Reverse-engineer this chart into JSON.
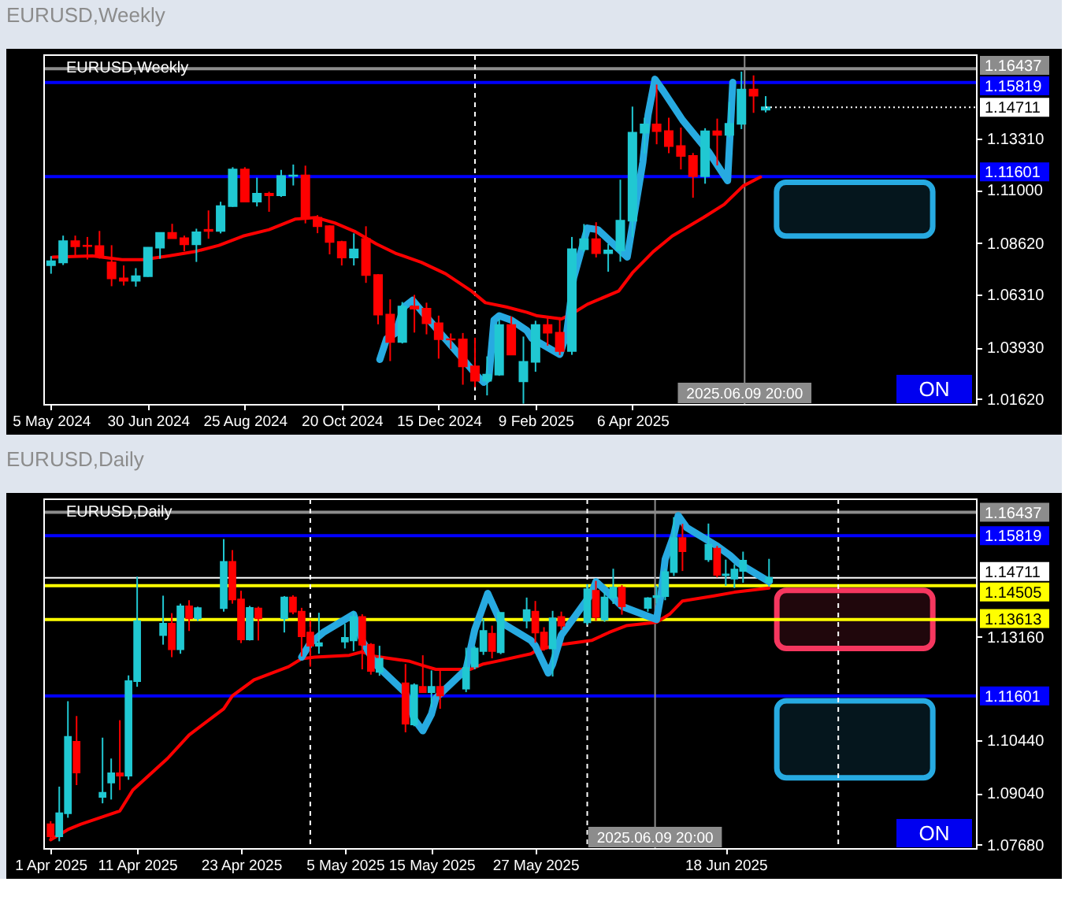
{
  "chart_data": [
    {
      "type": "candlestick",
      "title": "EURUSD,Weekly",
      "subtitle": "EURUSD,Weekly",
      "x": [
        "2024-05-05",
        "2024-05-12",
        "2024-05-19",
        "2024-05-26",
        "2024-06-02",
        "2024-06-09",
        "2024-06-16",
        "2024-06-23",
        "2024-06-30",
        "2024-07-07",
        "2024-07-14",
        "2024-07-21",
        "2024-07-28",
        "2024-08-04",
        "2024-08-11",
        "2024-08-18",
        "2024-08-25",
        "2024-09-01",
        "2024-09-08",
        "2024-09-15",
        "2024-09-22",
        "2024-09-29",
        "2024-10-06",
        "2024-10-13",
        "2024-10-20",
        "2024-10-27",
        "2024-11-03",
        "2024-11-10",
        "2024-11-17",
        "2024-11-24",
        "2024-12-01",
        "2024-12-08",
        "2024-12-15",
        "2024-12-22",
        "2024-12-29",
        "2025-01-05",
        "2025-01-12",
        "2025-01-19",
        "2025-01-26",
        "2025-02-02",
        "2025-02-09",
        "2025-02-16",
        "2025-02-23",
        "2025-03-02",
        "2025-03-09",
        "2025-03-16",
        "2025-03-23",
        "2025-03-30",
        "2025-04-06",
        "2025-04-13",
        "2025-04-20",
        "2025-04-27",
        "2025-05-04",
        "2025-05-11",
        "2025-05-18",
        "2025-05-25",
        "2025-06-01",
        "2025-06-08",
        "2025-06-15",
        "2025-06-22"
      ],
      "ohlc": [
        [
          1.0762,
          1.0803,
          1.0724,
          1.078
        ],
        [
          1.0775,
          1.0895,
          1.0763,
          1.087
        ],
        [
          1.087,
          1.0895,
          1.0805,
          1.0847
        ],
        [
          1.085,
          1.0889,
          1.0788,
          1.0848
        ],
        [
          1.0848,
          1.0916,
          1.0792,
          1.0801
        ],
        [
          1.0775,
          1.0852,
          1.0668,
          1.0703
        ],
        [
          1.0703,
          1.0761,
          1.0671,
          1.0693
        ],
        [
          1.0693,
          1.0749,
          1.0666,
          1.0713
        ],
        [
          1.0713,
          1.0843,
          1.071,
          1.0841
        ],
        [
          1.0841,
          1.091,
          1.0791,
          1.0907
        ],
        [
          1.0907,
          1.0948,
          1.0882,
          1.0883
        ],
        [
          1.0883,
          1.0895,
          1.0825,
          1.0856
        ],
        [
          1.0856,
          1.0926,
          1.0777,
          1.091
        ],
        [
          1.0921,
          1.1008,
          1.0881,
          1.0916
        ],
        [
          1.0916,
          1.1047,
          1.0905,
          1.1027
        ],
        [
          1.1027,
          1.1202,
          1.1024,
          1.1192
        ],
        [
          1.1192,
          1.1202,
          1.1046,
          1.1048
        ],
        [
          1.1048,
          1.1155,
          1.1026,
          1.1083
        ],
        [
          1.1083,
          1.1092,
          1.1002,
          1.1076
        ],
        [
          1.1076,
          1.119,
          1.1069,
          1.1163
        ],
        [
          1.1163,
          1.1214,
          1.112,
          1.1165
        ],
        [
          1.1165,
          1.1209,
          1.095,
          1.0975
        ],
        [
          1.0975,
          1.0987,
          1.0906,
          1.0937
        ],
        [
          1.0937,
          1.0941,
          1.0811,
          1.0867
        ],
        [
          1.0867,
          1.0872,
          1.0761,
          1.0797
        ],
        [
          1.0797,
          1.0905,
          1.0761,
          1.0833
        ],
        [
          1.088,
          1.0937,
          1.0683,
          1.0718
        ],
        [
          1.0718,
          1.0722,
          1.0497,
          1.0541
        ],
        [
          1.0541,
          1.0609,
          1.0332,
          1.0418
        ],
        [
          1.0418,
          1.0597,
          1.0411,
          1.0577
        ],
        [
          1.0577,
          1.0629,
          1.046,
          1.0567
        ],
        [
          1.0567,
          1.0594,
          1.0452,
          1.0502
        ],
        [
          1.0502,
          1.0536,
          1.0343,
          1.043
        ],
        [
          1.043,
          1.0456,
          1.0386,
          1.0429
        ],
        [
          1.0429,
          1.0458,
          1.0226,
          1.0308
        ],
        [
          1.0308,
          1.0437,
          1.0215,
          1.0244
        ],
        [
          1.0244,
          1.0353,
          1.0178,
          1.0271
        ],
        [
          1.0271,
          1.0521,
          1.0266,
          1.0494
        ],
        [
          1.0494,
          1.0532,
          1.0359,
          1.0361
        ],
        [
          1.0241,
          1.0442,
          1.0141,
          1.0329
        ],
        [
          1.0329,
          1.0513,
          1.0284,
          1.0494
        ],
        [
          1.0494,
          1.0528,
          1.0401,
          1.0459
        ],
        [
          1.0459,
          1.0529,
          1.0359,
          1.0377
        ],
        [
          1.0377,
          1.0889,
          1.036,
          1.0834
        ],
        [
          1.0834,
          1.0947,
          1.0823,
          1.0879
        ],
        [
          1.0879,
          1.0955,
          1.0797,
          1.0816
        ],
        [
          1.0816,
          1.0858,
          1.0733,
          1.0829
        ],
        [
          1.0829,
          1.1146,
          1.0778,
          1.0962
        ],
        [
          1.0962,
          1.1474,
          1.0889,
          1.1357
        ],
        [
          1.1357,
          1.1424,
          1.1264,
          1.1394
        ],
        [
          1.1394,
          1.1573,
          1.1305,
          1.1364
        ],
        [
          1.1364,
          1.1424,
          1.1265,
          1.1297
        ],
        [
          1.1297,
          1.138,
          1.1192,
          1.1253
        ],
        [
          1.1253,
          1.1266,
          1.1065,
          1.1162
        ],
        [
          1.1162,
          1.1377,
          1.1128,
          1.1363
        ],
        [
          1.1363,
          1.142,
          1.121,
          1.1347
        ],
        [
          1.1347,
          1.1495,
          1.1336,
          1.1397
        ],
        [
          1.1397,
          1.1631,
          1.1373,
          1.155
        ],
        [
          1.155,
          1.1614,
          1.1446,
          1.1523
        ],
        [
          1.146,
          1.1521,
          1.1448,
          1.1471
        ]
      ],
      "colors": [
        "#20c8d2",
        "#20c8d2",
        "#ff0000",
        "#ff0000",
        "#ff0000",
        "#ff0000",
        "#ff0000",
        "#20c8d2",
        "#20c8d2",
        "#20c8d2",
        "#ff0000",
        "#ff0000",
        "#20c8d2",
        "#ff0000",
        "#20c8d2",
        "#20c8d2",
        "#ff0000",
        "#20c8d2",
        "#ff0000",
        "#20c8d2",
        "#20c8d2",
        "#ff0000",
        "#ff0000",
        "#ff0000",
        "#ff0000",
        "#20c8d2",
        "#ff0000",
        "#ff0000",
        "#ff0000",
        "#20c8d2",
        "#ff0000",
        "#ff0000",
        "#ff0000",
        "#ff0000",
        "#ff0000",
        "#ff0000",
        "#20c8d2",
        "#20c8d2",
        "#ff0000",
        "#20c8d2",
        "#20c8d2",
        "#ff0000",
        "#ff0000",
        "#20c8d2",
        "#20c8d2",
        "#ff0000",
        "#20c8d2",
        "#20c8d2",
        "#20c8d2",
        "#20c8d2",
        "#ff0000",
        "#ff0000",
        "#ff0000",
        "#ff0000",
        "#20c8d2",
        "#ff0000",
        "#20c8d2",
        "#20c8d2",
        "#ff0000",
        "#20c8d2"
      ],
      "xlim": [
        "2024-05-01",
        "2025-10-22"
      ],
      "xticks": [
        {
          "value": "2024-05-05",
          "label": "5 May 2024"
        },
        {
          "value": "2024-06-30",
          "label": "30 Jun 2024"
        },
        {
          "value": "2024-08-25",
          "label": "25 Aug 2024"
        },
        {
          "value": "2024-10-20",
          "label": "20 Oct 2024"
        },
        {
          "value": "2024-12-15",
          "label": "15 Dec 2024"
        },
        {
          "value": "2025-02-09",
          "label": "9 Feb 2025"
        },
        {
          "value": "2025-04-06",
          "label": "6 Apr 2025"
        }
      ],
      "ylim": [
        1.0136,
        1.1705
      ],
      "yticks": [
        {
          "value": 1.0162,
          "label": "1.01620"
        },
        {
          "value": 1.0393,
          "label": "1.03930"
        },
        {
          "value": 1.0631,
          "label": "1.06310"
        },
        {
          "value": 1.0862,
          "label": "1.08620"
        },
        {
          "value": 1.11,
          "label": "1.11000"
        },
        {
          "value": 1.1331,
          "label": "1.13310"
        }
      ],
      "series": [
        {
          "type": "line",
          "color": "#ff0000",
          "x": [
            "2024-05-06",
            "2024-05-29",
            "2024-06-15",
            "2024-06-27",
            "2024-07-12",
            "2024-07-27",
            "2024-08-10",
            "2024-08-24",
            "2024-09-08",
            "2024-09-23",
            "2024-10-05",
            "2024-10-16",
            "2024-10-28",
            "2024-11-09",
            "2024-11-20",
            "2024-12-05",
            "2024-12-19",
            "2025-01-03",
            "2025-01-11",
            "2025-01-23",
            "2025-02-04",
            "2025-02-10",
            "2025-02-24",
            "2025-03-02",
            "2025-03-11",
            "2025-03-29",
            "2025-04-06",
            "2025-04-18",
            "2025-04-29",
            "2025-05-17",
            "2025-05-29",
            "2025-06-09",
            "2025-06-19"
          ],
          "values": [
            1.0799,
            1.0804,
            1.0787,
            1.0787,
            1.0804,
            1.0823,
            1.0851,
            1.0893,
            1.0922,
            1.0969,
            1.0976,
            1.0952,
            1.0912,
            1.0858,
            1.0816,
            1.0775,
            1.0724,
            1.0646,
            1.0594,
            1.0575,
            1.0551,
            1.0535,
            1.0521,
            1.0544,
            1.0587,
            1.0646,
            1.0728,
            1.0823,
            1.0893,
            1.0976,
            1.1035,
            1.1118,
            1.1158
          ]
        },
        {
          "type": "line",
          "color": "#27aae1",
          "x": [
            "2024-11-11",
            "2024-11-15",
            "2024-11-20",
            "2024-11-25",
            "2024-11-30",
            "2024-12-07",
            "2024-12-16",
            "2024-12-28",
            "2025-01-06",
            "2025-01-10",
            "2025-01-13",
            "2025-01-16",
            "2025-01-19",
            "2025-01-26",
            "2025-02-04",
            "2025-02-07",
            "2025-02-23",
            "2025-02-27",
            "2025-03-03",
            "2025-03-11",
            "2025-03-17",
            "2025-04-03",
            "2025-04-05",
            "2025-04-12",
            "2025-04-15",
            "2025-04-19",
            "2025-04-24",
            "2025-05-05",
            "2025-05-20",
            "2025-05-31",
            "2025-06-03"
          ],
          "values": [
            1.0339,
            1.0433,
            1.0457,
            1.0575,
            1.0605,
            1.0539,
            1.0457,
            1.0351,
            1.0268,
            1.0237,
            1.0256,
            1.0516,
            1.0535,
            1.0516,
            1.0469,
            1.0433,
            1.0362,
            1.0457,
            1.0705,
            1.0929,
            1.0922,
            1.0799,
            1.0893,
            1.1224,
            1.1436,
            1.1597,
            1.1542,
            1.1413,
            1.1271,
            1.1141,
            1.1583
          ]
        }
      ],
      "ref_lines": [
        {
          "axis": "y",
          "value": 1.16437,
          "label": "1.16437",
          "color": "#8c8c8c"
        },
        {
          "axis": "y",
          "value": 1.15819,
          "label": "1.15819",
          "color": "#0000ff"
        },
        {
          "axis": "y",
          "value": 1.11601,
          "label": "1.11601",
          "color": "#0000ff"
        },
        {
          "axis": "x",
          "value": "2025-01-05",
          "color": "#ffffff",
          "line_style": "dashed"
        },
        {
          "axis": "x",
          "value": "2025-06-09T20:00",
          "label": "2025.06.09 20:00",
          "color": "#8c8c8c"
        }
      ],
      "bands": [
        {
          "axis": "y",
          "from": 1.0893,
          "to": 1.1134,
          "color": "#27aae1"
        }
      ],
      "annotations": [
        {
          "text": "1.14711",
          "x": "2025-06-22",
          "y": 1.14711
        },
        "ON"
      ]
    },
    {
      "type": "candlestick",
      "title": "EURUSD,Daily",
      "subtitle": "EURUSD,Daily",
      "x": [
        "2025-04-01",
        "2025-04-02",
        "2025-04-03",
        "2025-04-04",
        "2025-04-07",
        "2025-04-08",
        "2025-04-09",
        "2025-04-10",
        "2025-04-11",
        "2025-04-14",
        "2025-04-15",
        "2025-04-16",
        "2025-04-17",
        "2025-04-18",
        "2025-04-21",
        "2025-04-22",
        "2025-04-23",
        "2025-04-24",
        "2025-04-25",
        "2025-04-28",
        "2025-04-29",
        "2025-04-30",
        "2025-05-01",
        "2025-05-02",
        "2025-05-05",
        "2025-05-06",
        "2025-05-07",
        "2025-05-08",
        "2025-05-09",
        "2025-05-12",
        "2025-05-13",
        "2025-05-14",
        "2025-05-15",
        "2025-05-16",
        "2025-05-19",
        "2025-05-20",
        "2025-05-21",
        "2025-05-22",
        "2025-05-23",
        "2025-05-26",
        "2025-05-27",
        "2025-05-28",
        "2025-05-29",
        "2025-05-30",
        "2025-06-02",
        "2025-06-03",
        "2025-06-04",
        "2025-06-05",
        "2025-06-06",
        "2025-06-09",
        "2025-06-10",
        "2025-06-11",
        "2025-06-12",
        "2025-06-13",
        "2025-06-16",
        "2025-06-17",
        "2025-06-18",
        "2025-06-19",
        "2025-06-20",
        "2025-06-23"
      ],
      "ohlc": [
        [
          1.0822,
          1.083,
          1.0778,
          1.079
        ],
        [
          1.079,
          1.0921,
          1.0777,
          1.0851
        ],
        [
          1.0851,
          1.1146,
          1.0839,
          1.1052
        ],
        [
          1.1039,
          1.1107,
          1.0925,
          1.0958
        ],
        [
          1.0894,
          1.105,
          1.0877,
          1.0905
        ],
        [
          1.0932,
          1.0995,
          1.0887,
          1.0956
        ],
        [
          1.0956,
          1.1096,
          1.0912,
          1.095
        ],
        [
          1.095,
          1.1214,
          1.0939,
          1.1199
        ],
        [
          1.1199,
          1.1474,
          1.1184,
          1.1357
        ],
        [
          1.132,
          1.1424,
          1.1295,
          1.135
        ],
        [
          1.135,
          1.1378,
          1.1262,
          1.1283
        ],
        [
          1.1283,
          1.1403,
          1.1271,
          1.1396
        ],
        [
          1.1396,
          1.1412,
          1.1331,
          1.1364
        ],
        [
          1.1364,
          1.1395,
          1.1357,
          1.1391
        ],
        [
          1.1391,
          1.1573,
          1.1382,
          1.1513
        ],
        [
          1.1513,
          1.1544,
          1.1403,
          1.1414
        ],
        [
          1.1414,
          1.1437,
          1.1299,
          1.1309
        ],
        [
          1.1309,
          1.1397,
          1.1306,
          1.1392
        ],
        [
          1.139,
          1.1395,
          1.1306,
          1.1364
        ],
        [
          1.1364,
          1.1423,
          1.1327,
          1.1419
        ],
        [
          1.1419,
          1.1425,
          1.1375,
          1.1382
        ],
        [
          1.1382,
          1.1392,
          1.1264,
          1.1317
        ],
        [
          1.1327,
          1.1358,
          1.1237,
          1.1292
        ],
        [
          1.1292,
          1.1379,
          1.1271,
          1.1299
        ],
        [
          1.1303,
          1.135,
          1.1285,
          1.1313
        ],
        [
          1.1306,
          1.1382,
          1.1278,
          1.1368
        ],
        [
          1.1368,
          1.1375,
          1.123,
          1.1295
        ],
        [
          1.1295,
          1.1299,
          1.1216,
          1.1226
        ],
        [
          1.1223,
          1.1292,
          1.1213,
          1.1258
        ],
        [
          1.1193,
          1.1244,
          1.1064,
          1.1087
        ],
        [
          1.1085,
          1.1193,
          1.108,
          1.1188
        ],
        [
          1.1184,
          1.1267,
          1.1168,
          1.117
        ],
        [
          1.117,
          1.1227,
          1.113,
          1.1184
        ],
        [
          1.1184,
          1.1228,
          1.1126,
          1.1161
        ],
        [
          1.1179,
          1.1287,
          1.117,
          1.1234
        ],
        [
          1.1237,
          1.1291,
          1.123,
          1.1285
        ],
        [
          1.1278,
          1.1363,
          1.1268,
          1.1331
        ],
        [
          1.1324,
          1.1345,
          1.1259,
          1.1278
        ],
        [
          1.1275,
          1.1379,
          1.127,
          1.1379
        ],
        [
          1.1358,
          1.1419,
          1.1338,
          1.1386
        ],
        [
          1.1382,
          1.141,
          1.13,
          1.1327
        ],
        [
          1.1327,
          1.1341,
          1.1279,
          1.1285
        ],
        [
          1.1285,
          1.1384,
          1.1211,
          1.1364
        ],
        [
          1.1368,
          1.1382,
          1.1334,
          1.1345
        ],
        [
          1.1354,
          1.1454,
          1.1347,
          1.1441
        ],
        [
          1.1437,
          1.1463,
          1.1358,
          1.1368
        ],
        [
          1.1361,
          1.1434,
          1.1355,
          1.1419
        ],
        [
          1.1419,
          1.1495,
          1.1402,
          1.1445
        ],
        [
          1.1445,
          1.1452,
          1.1374,
          1.1396
        ],
        [
          1.1392,
          1.142,
          1.1382,
          1.1417
        ],
        [
          1.142,
          1.145,
          1.1404,
          1.1423
        ],
        [
          1.1423,
          1.1495,
          1.1412,
          1.1486
        ],
        [
          1.1486,
          1.1631,
          1.1476,
          1.1576
        ],
        [
          1.1576,
          1.1613,
          1.1489,
          1.1541
        ],
        [
          1.152,
          1.1614,
          1.1513,
          1.1558
        ],
        [
          1.1548,
          1.1555,
          1.1472,
          1.1479
        ],
        [
          1.1478,
          1.1519,
          1.145,
          1.148
        ],
        [
          1.1469,
          1.1507,
          1.1444,
          1.1493
        ],
        [
          1.1489,
          1.154,
          1.1458,
          1.1516
        ],
        [
          1.146,
          1.1521,
          1.1448,
          1.1471
        ]
      ],
      "colors": [
        "#ff0000",
        "#20c8d2",
        "#20c8d2",
        "#ff0000",
        "#20c8d2",
        "#20c8d2",
        "#ff0000",
        "#20c8d2",
        "#20c8d2",
        "#20c8d2",
        "#ff0000",
        "#20c8d2",
        "#ff0000",
        "#20c8d2",
        "#20c8d2",
        "#ff0000",
        "#ff0000",
        "#20c8d2",
        "#ff0000",
        "#20c8d2",
        "#ff0000",
        "#ff0000",
        "#ff0000",
        "#20c8d2",
        "#20c8d2",
        "#20c8d2",
        "#ff0000",
        "#ff0000",
        "#20c8d2",
        "#ff0000",
        "#20c8d2",
        "#ff0000",
        "#20c8d2",
        "#ff0000",
        "#20c8d2",
        "#20c8d2",
        "#20c8d2",
        "#ff0000",
        "#20c8d2",
        "#20c8d2",
        "#ff0000",
        "#ff0000",
        "#20c8d2",
        "#ff0000",
        "#20c8d2",
        "#ff0000",
        "#20c8d2",
        "#20c8d2",
        "#ff0000",
        "#20c8d2",
        "#20c8d2",
        "#20c8d2",
        "#20c8d2",
        "#ff0000",
        "#20c8d2",
        "#ff0000",
        "#20c8d2",
        "#20c8d2",
        "#20c8d2",
        "#20c8d2"
      ],
      "xlim": [
        "2025-03-31T06:00",
        "2025-07-17"
      ],
      "xticks": [
        {
          "value": "2025-04-01",
          "label": "1 Apr 2025"
        },
        {
          "value": "2025-04-11",
          "label": "11 Apr 2025"
        },
        {
          "value": "2025-04-23",
          "label": "23 Apr 2025"
        },
        {
          "value": "2025-05-05",
          "label": "5 May 2025"
        },
        {
          "value": "2025-05-15",
          "label": "15 May 2025"
        },
        {
          "value": "2025-05-27",
          "label": "27 May 2025"
        },
        {
          "value": "2025-06-18",
          "label": "18 Jun 2025"
        }
      ],
      "ylim": [
        1.0757,
        1.1678
      ],
      "yticks": [
        {
          "value": 1.0768,
          "label": "1.07680"
        },
        {
          "value": 1.0904,
          "label": "1.09040"
        },
        {
          "value": 1.1044,
          "label": "1.10440"
        },
        {
          "value": 1.1316,
          "label": "1.13160"
        }
      ],
      "series": [
        {
          "type": "line",
          "color": "#ff0000",
          "x": [
            "2025-04-01",
            "2025-04-03",
            "2025-04-04T12:00",
            "2025-04-09",
            "2025-04-10T12:00",
            "2025-04-14T12:00",
            "2025-04-17",
            "2025-04-21",
            "2025-04-22",
            "2025-04-24T12:00",
            "2025-04-28T12:00",
            "2025-04-30",
            "2025-05-01T12:00",
            "2025-05-05T12:00",
            "2025-05-07",
            "2025-05-08T12:00",
            "2025-05-12T12:00",
            "2025-05-14",
            "2025-05-15T12:00",
            "2025-05-19T12:00",
            "2025-05-21",
            "2025-05-22T12:00",
            "2025-05-26T12:00",
            "2025-05-27",
            "2025-05-29",
            "2025-06-02T12:00",
            "2025-06-04T12:00",
            "2025-06-06T12:00",
            "2025-06-10",
            "2025-06-11T12:00",
            "2025-06-13",
            "2025-06-16T12:00",
            "2025-06-19",
            "2025-06-23"
          ],
          "values": [
            1.0781,
            1.0808,
            1.0822,
            1.0857,
            1.0912,
            1.0995,
            1.1057,
            1.1126,
            1.116,
            1.1202,
            1.1237,
            1.1258,
            1.1262,
            1.1267,
            1.1276,
            1.1264,
            1.1251,
            1.124,
            1.123,
            1.123,
            1.1244,
            1.1251,
            1.1271,
            1.1278,
            1.1292,
            1.1306,
            1.1327,
            1.1345,
            1.1354,
            1.1375,
            1.141,
            1.1423,
            1.1433,
            1.1444
          ]
        },
        {
          "type": "line",
          "color": "#27aae1",
          "x": [
            "2025-04-30",
            "2025-05-01",
            "2025-05-02T12:00",
            "2025-05-06",
            "2025-05-07",
            "2025-05-08T12:00",
            "2025-05-12",
            "2025-05-13",
            "2025-05-14",
            "2025-05-15",
            "2025-05-15T12:00",
            "2025-05-19",
            "2025-05-20",
            "2025-05-21T12:00",
            "2025-05-23",
            "2025-05-26T12:00",
            "2025-05-27",
            "2025-05-28T12:00",
            "2025-05-29",
            "2025-05-30",
            "2025-06-02T12:00",
            "2025-06-03",
            "2025-06-04T12:00",
            "2025-06-06",
            "2025-06-10",
            "2025-06-10T12:00",
            "2025-06-11",
            "2025-06-12",
            "2025-06-12T12:00",
            "2025-06-13T12:00",
            "2025-06-17",
            "2025-06-18T12:00",
            "2025-06-19T12:00",
            "2025-06-23"
          ],
          "values": [
            1.1262,
            1.1299,
            1.1327,
            1.1375,
            1.1306,
            1.1244,
            1.1168,
            1.1099,
            1.1068,
            1.1112,
            1.1154,
            1.123,
            1.1334,
            1.143,
            1.1354,
            1.1306,
            1.1292,
            1.122,
            1.1244,
            1.132,
            1.143,
            1.1461,
            1.143,
            1.1396,
            1.1361,
            1.1423,
            1.152,
            1.1583,
            1.1635,
            1.1603,
            1.1555,
            1.153,
            1.1509,
            1.1461
          ]
        }
      ],
      "ref_lines": [
        {
          "axis": "y",
          "value": 1.16437,
          "label": "1.16437",
          "color": "#8c8c8c"
        },
        {
          "axis": "y",
          "value": 1.15819,
          "label": "1.15819",
          "color": "#0000ff"
        },
        {
          "axis": "y",
          "value": 1.14711,
          "label": "1.14711",
          "color": "#ffffff"
        },
        {
          "axis": "y",
          "value": 1.14505,
          "label": "1.14505",
          "color": "#ffff00"
        },
        {
          "axis": "y",
          "value": 1.13613,
          "label": "1.13613",
          "color": "#ffff00"
        },
        {
          "axis": "y",
          "value": 1.11601,
          "label": "1.11601",
          "color": "#0000ff"
        },
        {
          "axis": "x",
          "value": "2025-05-01",
          "color": "#ffffff",
          "line_style": "dashed"
        },
        {
          "axis": "x",
          "value": "2025-06-02",
          "color": "#ffffff",
          "line_style": "dashed"
        },
        {
          "axis": "x",
          "value": "2025-07-01",
          "color": "#ffffff",
          "line_style": "dashed"
        },
        {
          "axis": "x",
          "value": "2025-06-09T20:00",
          "label": "2025.06.09 20:00",
          "color": "#8c8c8c"
        }
      ],
      "bands": [
        {
          "axis": "y",
          "from": 1.1285,
          "to": 1.1438,
          "color": "#f5375f"
        },
        {
          "axis": "y",
          "from": 1.0944,
          "to": 1.1147,
          "color": "#27aae1"
        }
      ],
      "annotations": [
        "ON"
      ]
    }
  ]
}
